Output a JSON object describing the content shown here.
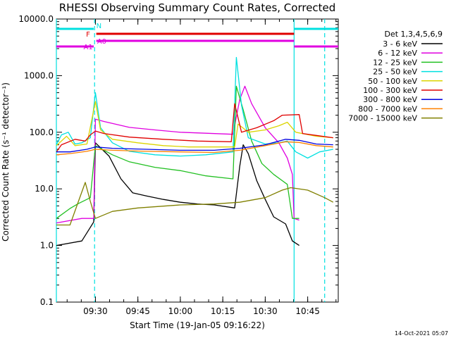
{
  "chart_data": {
    "type": "line",
    "title": "RHESSI Observing Summary Count Rates, Corrected",
    "ylabel": "Corrected Count Rate (s⁻¹ detector⁻¹)",
    "xlabel": "Start Time (19-Jan-05 09:16:22)",
    "yscale": "log",
    "ylim": [
      0.1,
      10000
    ],
    "xlim_minutes": [
      9.27,
      10.93
    ],
    "y_ticks": [
      {
        "v": 10000,
        "label": "10000.0"
      },
      {
        "v": 1000,
        "label": "1000.0"
      },
      {
        "v": 100,
        "label": "100.0"
      },
      {
        "v": 10,
        "label": "10.0"
      },
      {
        "v": 1,
        "label": "1.0"
      },
      {
        "v": 0.1,
        "label": "0.1"
      }
    ],
    "x_ticks": [
      {
        "t": 9.5,
        "label": "09:30"
      },
      {
        "t": 9.75,
        "label": "09:45"
      },
      {
        "t": 10.0,
        "label": "10:00"
      },
      {
        "t": 10.25,
        "label": "10:15"
      },
      {
        "t": 10.5,
        "label": "10:30"
      },
      {
        "t": 10.75,
        "label": "10:45"
      }
    ],
    "legend_title": "Det 1,3,4,5,6,9",
    "legend_position": "right",
    "series": [
      {
        "name": "3 - 6 keV",
        "color": "#000000",
        "points": [
          [
            9.27,
            1.0
          ],
          [
            9.42,
            1.2
          ],
          [
            9.49,
            2.6
          ],
          [
            9.5,
            65
          ],
          [
            9.58,
            38
          ],
          [
            9.65,
            15
          ],
          [
            9.72,
            8.5
          ],
          [
            9.8,
            7.5
          ],
          [
            9.9,
            6.5
          ],
          [
            10.0,
            5.8
          ],
          [
            10.1,
            5.4
          ],
          [
            10.2,
            5.2
          ],
          [
            10.32,
            4.6
          ],
          [
            10.35,
            25
          ],
          [
            10.37,
            60
          ],
          [
            10.4,
            42
          ],
          [
            10.45,
            14
          ],
          [
            10.5,
            6.5
          ],
          [
            10.55,
            3.2
          ],
          [
            10.62,
            2.4
          ],
          [
            10.66,
            1.2
          ],
          [
            10.7,
            1.0
          ]
        ]
      },
      {
        "name": "6 - 12 keV",
        "color": "#e000e0",
        "points": [
          [
            9.27,
            2.5
          ],
          [
            9.42,
            3.0
          ],
          [
            9.49,
            3.0
          ],
          [
            9.5,
            170
          ],
          [
            9.55,
            155
          ],
          [
            9.7,
            122
          ],
          [
            9.85,
            110
          ],
          [
            10.0,
            100
          ],
          [
            10.15,
            96
          ],
          [
            10.31,
            92
          ],
          [
            10.35,
            380
          ],
          [
            10.38,
            650
          ],
          [
            10.42,
            320
          ],
          [
            10.5,
            120
          ],
          [
            10.58,
            65
          ],
          [
            10.63,
            35
          ],
          [
            10.66,
            18
          ],
          [
            10.67,
            3.0
          ],
          [
            10.7,
            2.8
          ]
        ]
      },
      {
        "name": "12 - 25 keV",
        "color": "#22c022",
        "points": [
          [
            9.27,
            3.0
          ],
          [
            9.35,
            4.5
          ],
          [
            9.4,
            5.5
          ],
          [
            9.47,
            7.0
          ],
          [
            9.5,
            58
          ],
          [
            9.6,
            40
          ],
          [
            9.7,
            30
          ],
          [
            9.85,
            24
          ],
          [
            10.0,
            21
          ],
          [
            10.15,
            17
          ],
          [
            10.31,
            15
          ],
          [
            10.33,
            650
          ],
          [
            10.37,
            250
          ],
          [
            10.42,
            70
          ],
          [
            10.48,
            28
          ],
          [
            10.55,
            18
          ],
          [
            10.63,
            12
          ],
          [
            10.66,
            3.0
          ],
          [
            10.7,
            3.0
          ]
        ]
      },
      {
        "name": "25 - 50 keV",
        "color": "#00e0e0",
        "points": [
          [
            9.27,
            60
          ],
          [
            9.3,
            90
          ],
          [
            9.34,
            100
          ],
          [
            9.38,
            62
          ],
          [
            9.42,
            65
          ],
          [
            9.47,
            80
          ],
          [
            9.5,
            500
          ],
          [
            9.53,
            120
          ],
          [
            9.6,
            65
          ],
          [
            9.7,
            46
          ],
          [
            9.85,
            40
          ],
          [
            10.0,
            38
          ],
          [
            10.15,
            40
          ],
          [
            10.31,
            45
          ],
          [
            10.33,
            2100
          ],
          [
            10.36,
            300
          ],
          [
            10.4,
            80
          ],
          [
            10.5,
            62
          ],
          [
            10.58,
            65
          ],
          [
            10.63,
            70
          ],
          [
            10.68,
            45
          ],
          [
            10.75,
            35
          ],
          [
            10.82,
            45
          ],
          [
            10.9,
            50
          ]
        ]
      },
      {
        "name": "50 - 100 keV",
        "color": "#dcd400",
        "points": [
          [
            9.27,
            58
          ],
          [
            9.33,
            85
          ],
          [
            9.38,
            58
          ],
          [
            9.45,
            62
          ],
          [
            9.5,
            350
          ],
          [
            9.53,
            110
          ],
          [
            9.6,
            75
          ],
          [
            9.75,
            65
          ],
          [
            9.9,
            58
          ],
          [
            10.05,
            55
          ],
          [
            10.2,
            55
          ],
          [
            10.32,
            55
          ],
          [
            10.34,
            140
          ],
          [
            10.4,
            100
          ],
          [
            10.5,
            110
          ],
          [
            10.58,
            130
          ],
          [
            10.63,
            150
          ],
          [
            10.68,
            100
          ],
          [
            10.8,
            85
          ],
          [
            10.9,
            80
          ]
        ]
      },
      {
        "name": "100 - 300 keV",
        "color": "#e00000",
        "points": [
          [
            9.27,
            45
          ],
          [
            9.3,
            60
          ],
          [
            9.38,
            75
          ],
          [
            9.44,
            70
          ],
          [
            9.47,
            90
          ],
          [
            9.5,
            105
          ],
          [
            9.55,
            95
          ],
          [
            9.7,
            82
          ],
          [
            9.9,
            75
          ],
          [
            10.1,
            70
          ],
          [
            10.3,
            68
          ],
          [
            10.32,
            320
          ],
          [
            10.36,
            100
          ],
          [
            10.45,
            120
          ],
          [
            10.55,
            160
          ],
          [
            10.6,
            200
          ],
          [
            10.7,
            205
          ],
          [
            10.72,
            95
          ],
          [
            10.8,
            88
          ],
          [
            10.9,
            80
          ]
        ]
      },
      {
        "name": "300 - 800 keV",
        "color": "#0000e0",
        "points": [
          [
            9.27,
            45
          ],
          [
            9.35,
            45
          ],
          [
            9.45,
            50
          ],
          [
            9.5,
            55
          ],
          [
            9.6,
            52
          ],
          [
            9.8,
            50
          ],
          [
            10.0,
            48
          ],
          [
            10.2,
            48
          ],
          [
            10.35,
            52
          ],
          [
            10.5,
            60
          ],
          [
            10.62,
            75
          ],
          [
            10.7,
            72
          ],
          [
            10.8,
            62
          ],
          [
            10.9,
            60
          ]
        ]
      },
      {
        "name": "800 - 7000 keV",
        "color": "#ff8000",
        "points": [
          [
            9.27,
            40
          ],
          [
            9.35,
            42
          ],
          [
            9.45,
            46
          ],
          [
            9.5,
            50
          ],
          [
            9.6,
            48
          ],
          [
            9.8,
            46
          ],
          [
            10.0,
            45
          ],
          [
            10.2,
            44
          ],
          [
            10.35,
            48
          ],
          [
            10.5,
            58
          ],
          [
            10.62,
            68
          ],
          [
            10.7,
            66
          ],
          [
            10.8,
            58
          ],
          [
            10.9,
            55
          ]
        ]
      },
      {
        "name": "7000 - 15000 keV",
        "color": "#808000",
        "points": [
          [
            9.27,
            2.3
          ],
          [
            9.35,
            2.3
          ],
          [
            9.4,
            6
          ],
          [
            9.44,
            13
          ],
          [
            9.47,
            6
          ],
          [
            9.5,
            3.0
          ],
          [
            9.6,
            4.0
          ],
          [
            9.75,
            4.6
          ],
          [
            10.0,
            5.2
          ],
          [
            10.2,
            5.4
          ],
          [
            10.35,
            5.8
          ],
          [
            10.5,
            7.0
          ],
          [
            10.6,
            9.5
          ],
          [
            10.65,
            10.5
          ],
          [
            10.75,
            9.5
          ],
          [
            10.85,
            7.0
          ],
          [
            10.9,
            5.8
          ]
        ]
      }
    ],
    "vlines": [
      {
        "t": 9.27,
        "color": "#00e0e0",
        "dashed": false
      },
      {
        "t": 9.495,
        "color": "#00e0e0",
        "dashed": true
      },
      {
        "t": 10.67,
        "color": "#00e0e0",
        "dashed": false
      },
      {
        "t": 10.85,
        "color": "#00e0e0",
        "dashed": true
      }
    ],
    "status_bars": [
      {
        "label": "N",
        "color": "#00e0e0",
        "level": 1,
        "segments": [
          [
            9.27,
            9.49
          ],
          [
            10.67,
            10.93
          ]
        ],
        "label_t": 9.505
      },
      {
        "label": "F",
        "color": "#e00000",
        "level": 2,
        "segments": [
          [
            9.505,
            10.67
          ]
        ],
        "label_t": 9.445
      },
      {
        "label": "A0",
        "color": "#e000e0",
        "level": 3,
        "segments": [
          [
            9.505,
            10.67
          ]
        ],
        "label_t": 9.51
      },
      {
        "label": "A1",
        "color": "#e000e0",
        "level": 4,
        "segments": [
          [
            9.27,
            9.49
          ],
          [
            10.67,
            10.93
          ]
        ],
        "label_t": 9.43
      }
    ],
    "attenuator_ticks_t": [
      9.75,
      10.13,
      10.19,
      10.26,
      10.57
    ],
    "timestamp": "14-Oct-2021 05:07"
  }
}
